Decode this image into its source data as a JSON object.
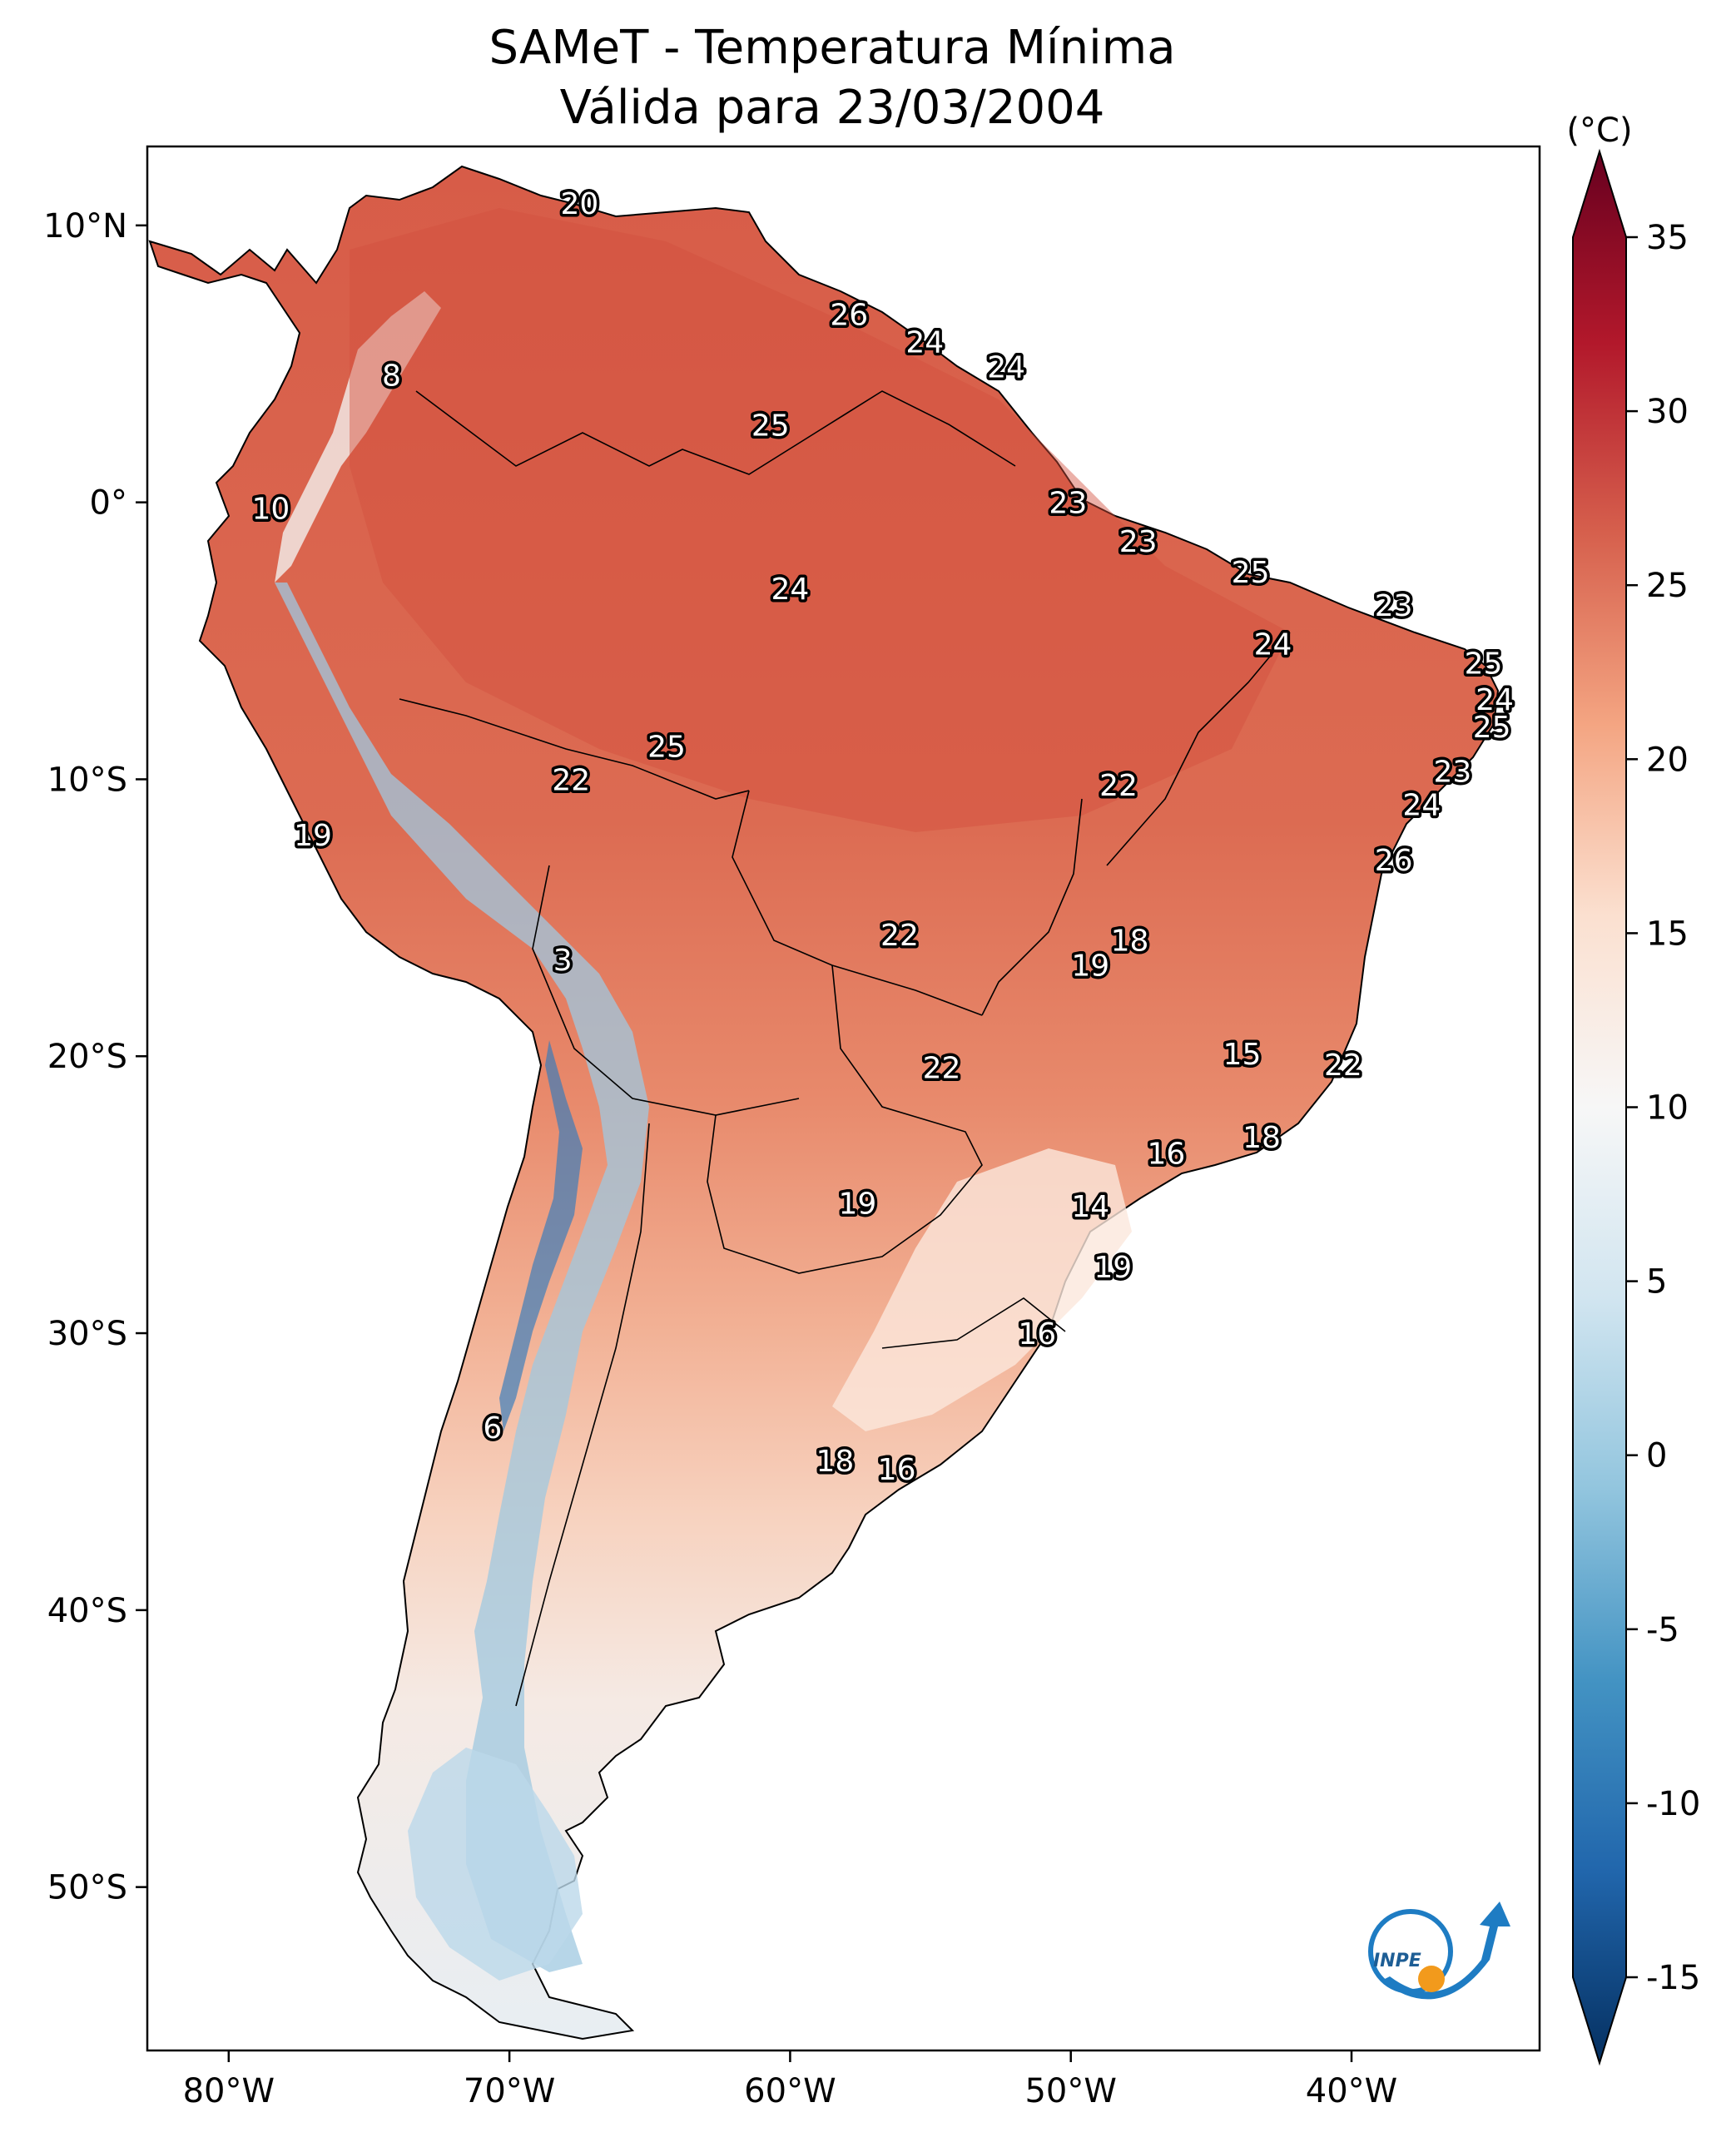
{
  "title_line1": "SAMeT - Temperatura Mínima",
  "title_line2": "Válida para 23/03/2004",
  "colorbar": {
    "unit": "(°C)",
    "ticks": [
      "35",
      "30",
      "25",
      "20",
      "15",
      "10",
      "5",
      "0",
      "-5",
      "-10",
      "-15"
    ],
    "range": [
      -15,
      35
    ]
  },
  "axes": {
    "lon_labels": [
      "80°W",
      "70°W",
      "60°W",
      "50°W",
      "40°W"
    ],
    "lat_labels": [
      "10°N",
      "0°",
      "10°S",
      "20°S",
      "30°S",
      "40°S",
      "50°S"
    ]
  },
  "logo_text": "INPE",
  "stations": [
    {
      "lon": -67.5,
      "lat": 10.8,
      "value": "20"
    },
    {
      "lon": -74.2,
      "lat": 4.6,
      "value": "8"
    },
    {
      "lon": -57.9,
      "lat": 6.8,
      "value": "26"
    },
    {
      "lon": -55.2,
      "lat": 5.8,
      "value": "24"
    },
    {
      "lon": -52.3,
      "lat": 4.9,
      "value": "24"
    },
    {
      "lon": -60.7,
      "lat": 2.8,
      "value": "25"
    },
    {
      "lon": -78.5,
      "lat": -0.2,
      "value": "10"
    },
    {
      "lon": -50.1,
      "lat": 0.0,
      "value": "23"
    },
    {
      "lon": -47.6,
      "lat": -1.4,
      "value": "23"
    },
    {
      "lon": -60.0,
      "lat": -3.1,
      "value": "24"
    },
    {
      "lon": -43.6,
      "lat": -2.5,
      "value": "25"
    },
    {
      "lon": -38.5,
      "lat": -3.7,
      "value": "23"
    },
    {
      "lon": -42.8,
      "lat": -5.1,
      "value": "24"
    },
    {
      "lon": -35.3,
      "lat": -5.8,
      "value": "25"
    },
    {
      "lon": -34.9,
      "lat": -7.1,
      "value": "24"
    },
    {
      "lon": -35.0,
      "lat": -8.1,
      "value": "25"
    },
    {
      "lon": -64.4,
      "lat": -8.8,
      "value": "25"
    },
    {
      "lon": -67.8,
      "lat": -10.0,
      "value": "22"
    },
    {
      "lon": -48.3,
      "lat": -10.2,
      "value": "22"
    },
    {
      "lon": -36.4,
      "lat": -9.7,
      "value": "23"
    },
    {
      "lon": -37.5,
      "lat": -10.9,
      "value": "24"
    },
    {
      "lon": -77.0,
      "lat": -12.0,
      "value": "19"
    },
    {
      "lon": -38.5,
      "lat": -12.9,
      "value": "26"
    },
    {
      "lon": -56.1,
      "lat": -15.6,
      "value": "22"
    },
    {
      "lon": -47.9,
      "lat": -15.8,
      "value": "18"
    },
    {
      "lon": -49.3,
      "lat": -16.7,
      "value": "19"
    },
    {
      "lon": -68.1,
      "lat": -16.5,
      "value": "3"
    },
    {
      "lon": -54.6,
      "lat": -20.4,
      "value": "22"
    },
    {
      "lon": -43.9,
      "lat": -19.9,
      "value": "15"
    },
    {
      "lon": -40.3,
      "lat": -20.3,
      "value": "22"
    },
    {
      "lon": -43.2,
      "lat": -22.9,
      "value": "18"
    },
    {
      "lon": -46.6,
      "lat": -23.5,
      "value": "16"
    },
    {
      "lon": -57.6,
      "lat": -25.3,
      "value": "19"
    },
    {
      "lon": -49.3,
      "lat": -25.4,
      "value": "14"
    },
    {
      "lon": -48.5,
      "lat": -27.6,
      "value": "19"
    },
    {
      "lon": -51.2,
      "lat": -30.0,
      "value": "16"
    },
    {
      "lon": -70.6,
      "lat": -33.4,
      "value": "6"
    },
    {
      "lon": -58.4,
      "lat": -34.6,
      "value": "18"
    },
    {
      "lon": -56.2,
      "lat": -34.9,
      "value": "16"
    }
  ]
}
